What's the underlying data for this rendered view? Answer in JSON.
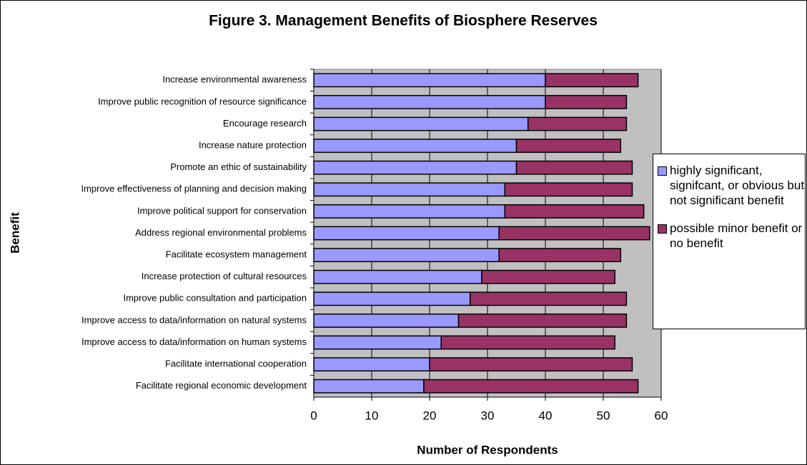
{
  "chart_data": {
    "type": "stacked-bar",
    "orientation": "horizontal",
    "title": "Figure 3. Management Benefits of Biosphere Reserves",
    "x_label": "Number of Respondents",
    "y_label": "Benefit",
    "categories": [
      "Increase environmental awareness",
      "Improve public recognition of resource significance",
      "Encourage research",
      "Increase nature protection",
      "Promote an ethic of sustainability",
      "Improve effectiveness of planning and decision making",
      "Improve political support for conservation",
      "Address regional environmental problems",
      "Facilitate ecosystem management",
      "Increase protection of cultural resources",
      "Improve public consultation and participation",
      "Improve access to data/information on natural systems",
      "Improve access to data/information on human systems",
      "Facilitate international cooperation",
      "Facilitate regional economic development"
    ],
    "series": [
      {
        "name": "highly significant, signifcant, or obvious but not significant benefit",
        "color": "#9999ff",
        "values": [
          40,
          40,
          37,
          35,
          35,
          33,
          33,
          32,
          32,
          29,
          27,
          25,
          22,
          20,
          19
        ]
      },
      {
        "name": "possible minor benefit or no benefit",
        "color": "#993366",
        "values": [
          16,
          14,
          17,
          18,
          20,
          22,
          24,
          26,
          21,
          23,
          27,
          29,
          30,
          35,
          37
        ]
      }
    ],
    "xlim": [
      0,
      60
    ],
    "xticks": [
      0,
      10,
      20,
      30,
      40,
      50,
      60
    ],
    "grid": true,
    "legend_position": "right"
  }
}
